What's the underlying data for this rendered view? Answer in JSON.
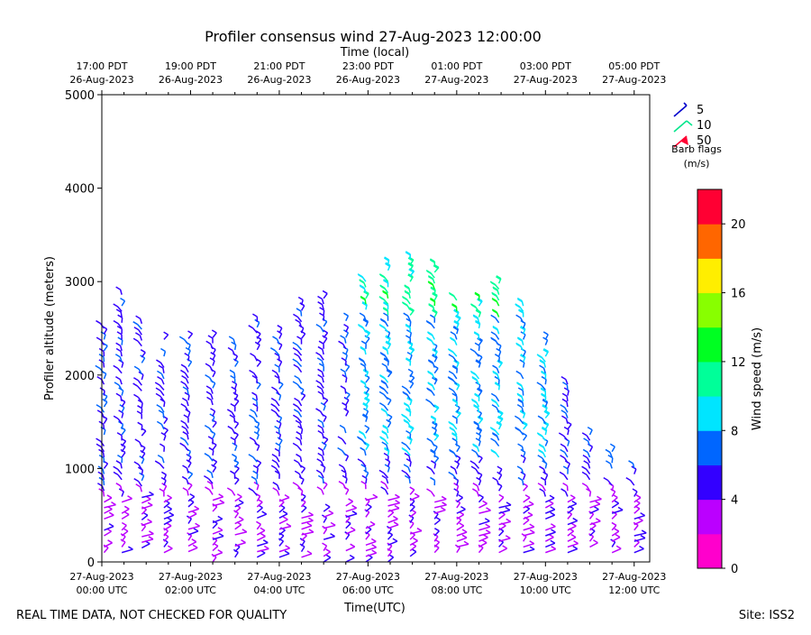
{
  "chart_data": {
    "type": "scatter",
    "title": "Profiler consensus wind 27-Aug-2023 12:00:00",
    "top_axis_label": "Time (local)",
    "top_ticks": [
      {
        "line1": "17:00 PDT",
        "line2": "26-Aug-2023",
        "hour": 0
      },
      {
        "line1": "19:00 PDT",
        "line2": "26-Aug-2023",
        "hour": 2
      },
      {
        "line1": "21:00 PDT",
        "line2": "26-Aug-2023",
        "hour": 4
      },
      {
        "line1": "23:00 PDT",
        "line2": "26-Aug-2023",
        "hour": 6
      },
      {
        "line1": "01:00 PDT",
        "line2": "27-Aug-2023",
        "hour": 8
      },
      {
        "line1": "03:00 PDT",
        "line2": "27-Aug-2023",
        "hour": 10
      },
      {
        "line1": "05:00 PDT",
        "line2": "27-Aug-2023",
        "hour": 12
      }
    ],
    "bottom_ticks": [
      {
        "line1": "27-Aug-2023",
        "line2": "00:00 UTC",
        "hour": 0
      },
      {
        "line1": "27-Aug-2023",
        "line2": "02:00 UTC",
        "hour": 2
      },
      {
        "line1": "27-Aug-2023",
        "line2": "04:00 UTC",
        "hour": 4
      },
      {
        "line1": "27-Aug-2023",
        "line2": "06:00 UTC",
        "hour": 6
      },
      {
        "line1": "27-Aug-2023",
        "line2": "08:00 UTC",
        "hour": 8
      },
      {
        "line1": "27-Aug-2023",
        "line2": "10:00 UTC",
        "hour": 10
      },
      {
        "line1": "27-Aug-2023",
        "line2": "12:00 UTC",
        "hour": 12
      }
    ],
    "xlabel": "Time(UTC)",
    "ylabel": "Profiler altitude (meters)",
    "ylim": [
      0,
      5000
    ],
    "xlim_hours": [
      0,
      12.35
    ],
    "y_ticks": [
      0,
      1000,
      2000,
      3000,
      4000,
      5000
    ],
    "barb_legend": {
      "entries": [
        {
          "label": "5",
          "color": "#0000cc"
        },
        {
          "label": "10",
          "color": "#00e68c"
        },
        {
          "label": "50",
          "color": "#ff0033"
        }
      ],
      "title_line1": "Barb flags",
      "title_line2": "(m/s)"
    },
    "colorbar": {
      "label": "Wind speed (m/s)",
      "ticks": [
        0,
        4,
        8,
        12,
        16,
        20
      ],
      "range": [
        0,
        22
      ],
      "colors": [
        "#ff00cc",
        "#bb00ff",
        "#3300ff",
        "#0066ff",
        "#00e5ff",
        "#00ff99",
        "#00ff22",
        "#88ff00",
        "#ffee00",
        "#ff6600",
        "#ff0033"
      ]
    },
    "profile_hours": [
      0.05,
      0.45,
      0.9,
      1.4,
      1.95,
      2.5,
      3.0,
      3.5,
      4.0,
      4.5,
      5.0,
      5.5,
      5.95,
      6.45,
      6.95,
      7.5,
      8.0,
      8.5,
      8.95,
      9.5,
      10.0,
      10.5,
      11.0,
      11.5,
      12.0
    ],
    "profile_tops_m": [
      2600,
      2900,
      2650,
      2450,
      2400,
      2450,
      2400,
      2600,
      2500,
      2800,
      2850,
      2650,
      3000,
      3200,
      3250,
      3200,
      2850,
      2850,
      3000,
      2750,
      2400,
      2000,
      1400,
      1200,
      1000
    ],
    "profile_bottoms_m": [
      100,
      100,
      150,
      100,
      50,
      0,
      50,
      50,
      50,
      50,
      0,
      0,
      0,
      0,
      0,
      100,
      100,
      100,
      100,
      100,
      100,
      100,
      100,
      100,
      100
    ]
  },
  "footer": {
    "left_note": "REAL TIME DATA, NOT CHECKED FOR QUALITY",
    "site": "Site: ISS2"
  }
}
